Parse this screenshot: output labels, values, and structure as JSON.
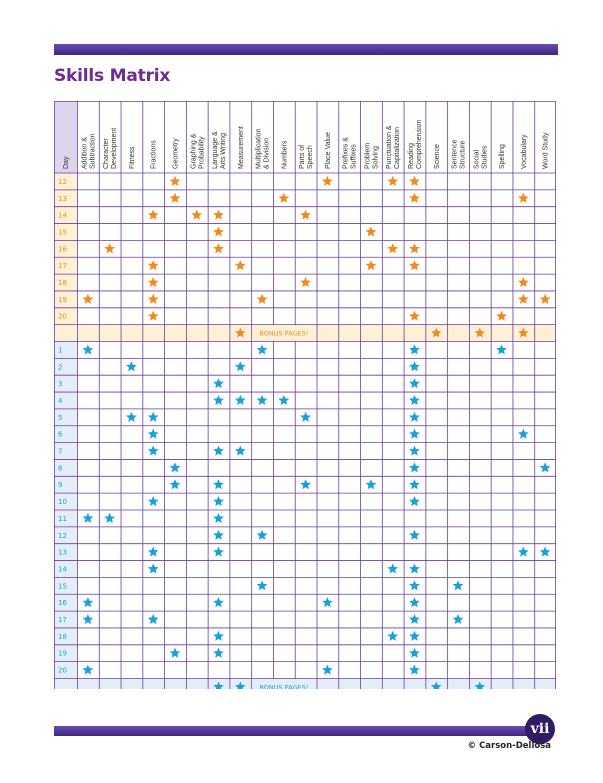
{
  "title": "Skills Matrix",
  "page_number": "vii",
  "copyright": "© Carson-Dellosa",
  "colors": {
    "frame": "#6b3fa0",
    "orange_star": "#f28a1e",
    "blue_star": "#1aa0da",
    "header_bg": "#ddd4ee",
    "day_orange_bg": "#fdf0d5",
    "day_blue_bg": "#e4eef8",
    "title": "#6b2d8f"
  },
  "columns": [
    "Day",
    "Addition & Subtraction",
    "Character Development",
    "Fitness",
    "Fractions",
    "Geometry",
    "Graphing & Probability",
    "Language Arts & Writing",
    "Measurement",
    "Multiplication & Division",
    "Numbers",
    "Parts of Speech",
    "Place Value",
    "Prefixes & Suffixes",
    "Problem Solving",
    "Punctuation & Capitalization",
    "Reading Comprehension",
    "Science",
    "Sentence Structure",
    "Social Studies",
    "Spelling",
    "Vocabulary",
    "Word Study"
  ],
  "orange_rows": [
    {
      "day": "12",
      "stars": [
        5,
        12,
        15,
        16
      ]
    },
    {
      "day": "13",
      "stars": [
        5,
        10,
        16,
        21
      ]
    },
    {
      "day": "14",
      "stars": [
        4,
        6,
        7,
        11
      ]
    },
    {
      "day": "15",
      "stars": [
        7,
        14
      ]
    },
    {
      "day": "16",
      "stars": [
        2,
        7,
        15,
        16
      ]
    },
    {
      "day": "17",
      "stars": [
        4,
        8,
        14,
        16
      ]
    },
    {
      "day": "18",
      "stars": [
        4,
        11,
        21
      ]
    },
    {
      "day": "19",
      "stars": [
        1,
        4,
        9,
        21,
        22
      ]
    },
    {
      "day": "20",
      "stars": [
        4,
        16,
        20
      ]
    }
  ],
  "orange_bonus": {
    "label": "BONUS PAGES!",
    "stars": [
      8,
      17,
      19,
      21
    ]
  },
  "blue_rows": [
    {
      "day": "1",
      "stars": [
        1,
        9,
        16,
        20
      ]
    },
    {
      "day": "2",
      "stars": [
        3,
        8,
        16
      ]
    },
    {
      "day": "3",
      "stars": [
        7,
        16
      ]
    },
    {
      "day": "4",
      "stars": [
        7,
        8,
        9,
        10,
        16
      ]
    },
    {
      "day": "5",
      "stars": [
        3,
        4,
        11,
        16
      ]
    },
    {
      "day": "6",
      "stars": [
        4,
        16,
        21
      ]
    },
    {
      "day": "7",
      "stars": [
        4,
        7,
        8,
        16
      ]
    },
    {
      "day": "8",
      "stars": [
        5,
        16,
        22
      ]
    },
    {
      "day": "9",
      "stars": [
        5,
        7,
        11,
        14,
        16
      ]
    },
    {
      "day": "10",
      "stars": [
        4,
        7,
        16
      ]
    },
    {
      "day": "11",
      "stars": [
        1,
        2,
        7
      ]
    },
    {
      "day": "12",
      "stars": [
        7,
        9,
        16
      ]
    },
    {
      "day": "13",
      "stars": [
        4,
        7,
        21,
        22
      ]
    },
    {
      "day": "14",
      "stars": [
        4,
        15,
        16
      ]
    },
    {
      "day": "15",
      "stars": [
        9,
        16,
        18
      ]
    },
    {
      "day": "16",
      "stars": [
        1,
        7,
        12,
        16
      ]
    },
    {
      "day": "17",
      "stars": [
        1,
        4,
        16,
        18
      ]
    },
    {
      "day": "18",
      "stars": [
        7,
        15,
        16
      ]
    },
    {
      "day": "19",
      "stars": [
        5,
        7,
        16
      ]
    },
    {
      "day": "20",
      "stars": [
        1,
        12,
        16
      ]
    }
  ],
  "blue_bonus": {
    "label": "BONUS PAGES!",
    "stars": [
      7,
      8,
      17,
      19
    ]
  }
}
